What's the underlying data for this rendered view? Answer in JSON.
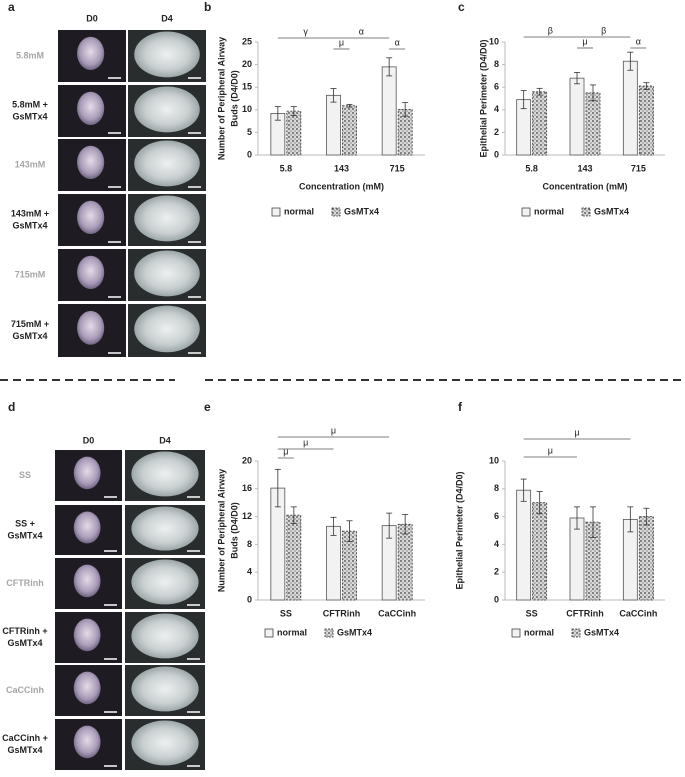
{
  "image_panels": [
    {
      "label": "a",
      "columns": [
        "D0",
        "D4"
      ],
      "rows": [
        [
          "5.8mM"
        ],
        [
          "5.8mM +",
          "GsMTx4"
        ],
        [
          "143mM"
        ],
        [
          "143mM +",
          "GsMTx4"
        ],
        [
          "715mM"
        ],
        [
          "715mM +",
          "GsMTx4"
        ]
      ]
    },
    {
      "label": "d",
      "columns": [
        "D0",
        "D4"
      ],
      "rows": [
        [
          "SS"
        ],
        [
          "SS +",
          "GsMTx4"
        ],
        [
          "CFTRinh"
        ],
        [
          "CFTRinh +",
          "GsMTx4"
        ],
        [
          "CaCCinh"
        ],
        [
          "CaCCinh +",
          "GsMTx4"
        ]
      ]
    }
  ],
  "chart_data": [
    {
      "type": "bar",
      "label": "b",
      "categories": [
        "5.8",
        "143",
        "715"
      ],
      "series": [
        {
          "name": "normal",
          "color": "#f2f2f2",
          "values": [
            9.2,
            13.2,
            19.5
          ],
          "errors": [
            1.5,
            1.5,
            2.0
          ]
        },
        {
          "name": "GsMTx4",
          "color": "#9a9a9a",
          "values": [
            9.7,
            10.9,
            10.1
          ],
          "errors": [
            1.0,
            0.3,
            1.5
          ]
        }
      ],
      "ylim": [
        0,
        25
      ],
      "yticks": [
        0,
        5,
        10,
        15,
        20,
        25
      ],
      "ylabel": [
        "Number of Peripheral Airway",
        "Buds (D4/D0)"
      ],
      "xlabel": "Concentration  (mM)",
      "annotations": [
        "γ",
        "α",
        "μ",
        "α"
      ],
      "grid": false
    },
    {
      "type": "bar",
      "label": "c",
      "categories": [
        "5.8",
        "143",
        "715"
      ],
      "series": [
        {
          "name": "normal",
          "color": "#f2f2f2",
          "values": [
            4.9,
            6.8,
            8.3
          ],
          "errors": [
            0.8,
            0.5,
            0.8
          ]
        },
        {
          "name": "GsMTx4",
          "color": "#9a9a9a",
          "values": [
            5.6,
            5.5,
            6.1
          ],
          "errors": [
            0.3,
            0.7,
            0.3
          ]
        }
      ],
      "ylim": [
        0,
        10
      ],
      "yticks": [
        0,
        2,
        4,
        6,
        8,
        10
      ],
      "ylabel": [
        "Epithelial Perimeter (D4/D0)"
      ],
      "xlabel": "Concentration  (mM)",
      "annotations": [
        "β",
        "β",
        "μ",
        "α"
      ],
      "grid": false
    },
    {
      "type": "bar",
      "label": "e",
      "categories": [
        "SS",
        "CFTRinh",
        "CaCCinh"
      ],
      "series": [
        {
          "name": "normal",
          "color": "#f2f2f2",
          "values": [
            16.1,
            10.6,
            10.7
          ],
          "errors": [
            2.7,
            1.3,
            1.8
          ]
        },
        {
          "name": "GsMTx4",
          "color": "#9a9a9a",
          "values": [
            12.2,
            9.9,
            10.9
          ],
          "errors": [
            1.2,
            1.5,
            1.4
          ]
        }
      ],
      "ylim": [
        0,
        20
      ],
      "yticks": [
        0,
        4,
        8,
        12,
        16,
        20
      ],
      "ylabel": [
        "Number of Peripheral Airway",
        "Buds (D4/D0)"
      ],
      "annotations": [
        "μ",
        "μ",
        "μ"
      ],
      "grid": false
    },
    {
      "type": "bar",
      "label": "f",
      "categories": [
        "SS",
        "CFTRinh",
        "CaCCinh"
      ],
      "series": [
        {
          "name": "normal",
          "color": "#f2f2f2",
          "values": [
            7.9,
            5.9,
            5.8
          ],
          "errors": [
            0.8,
            0.8,
            0.9
          ]
        },
        {
          "name": "GsMTx4",
          "color": "#9a9a9a",
          "values": [
            7.0,
            5.6,
            6.0
          ],
          "errors": [
            0.8,
            1.1,
            0.6
          ]
        }
      ],
      "ylim": [
        0,
        10
      ],
      "yticks": [
        0,
        2,
        4,
        6,
        8,
        10
      ],
      "ylabel": [
        "Epithelial Perimeter (D4/D0)"
      ],
      "annotations": [
        "μ",
        "μ"
      ],
      "grid": false
    }
  ]
}
